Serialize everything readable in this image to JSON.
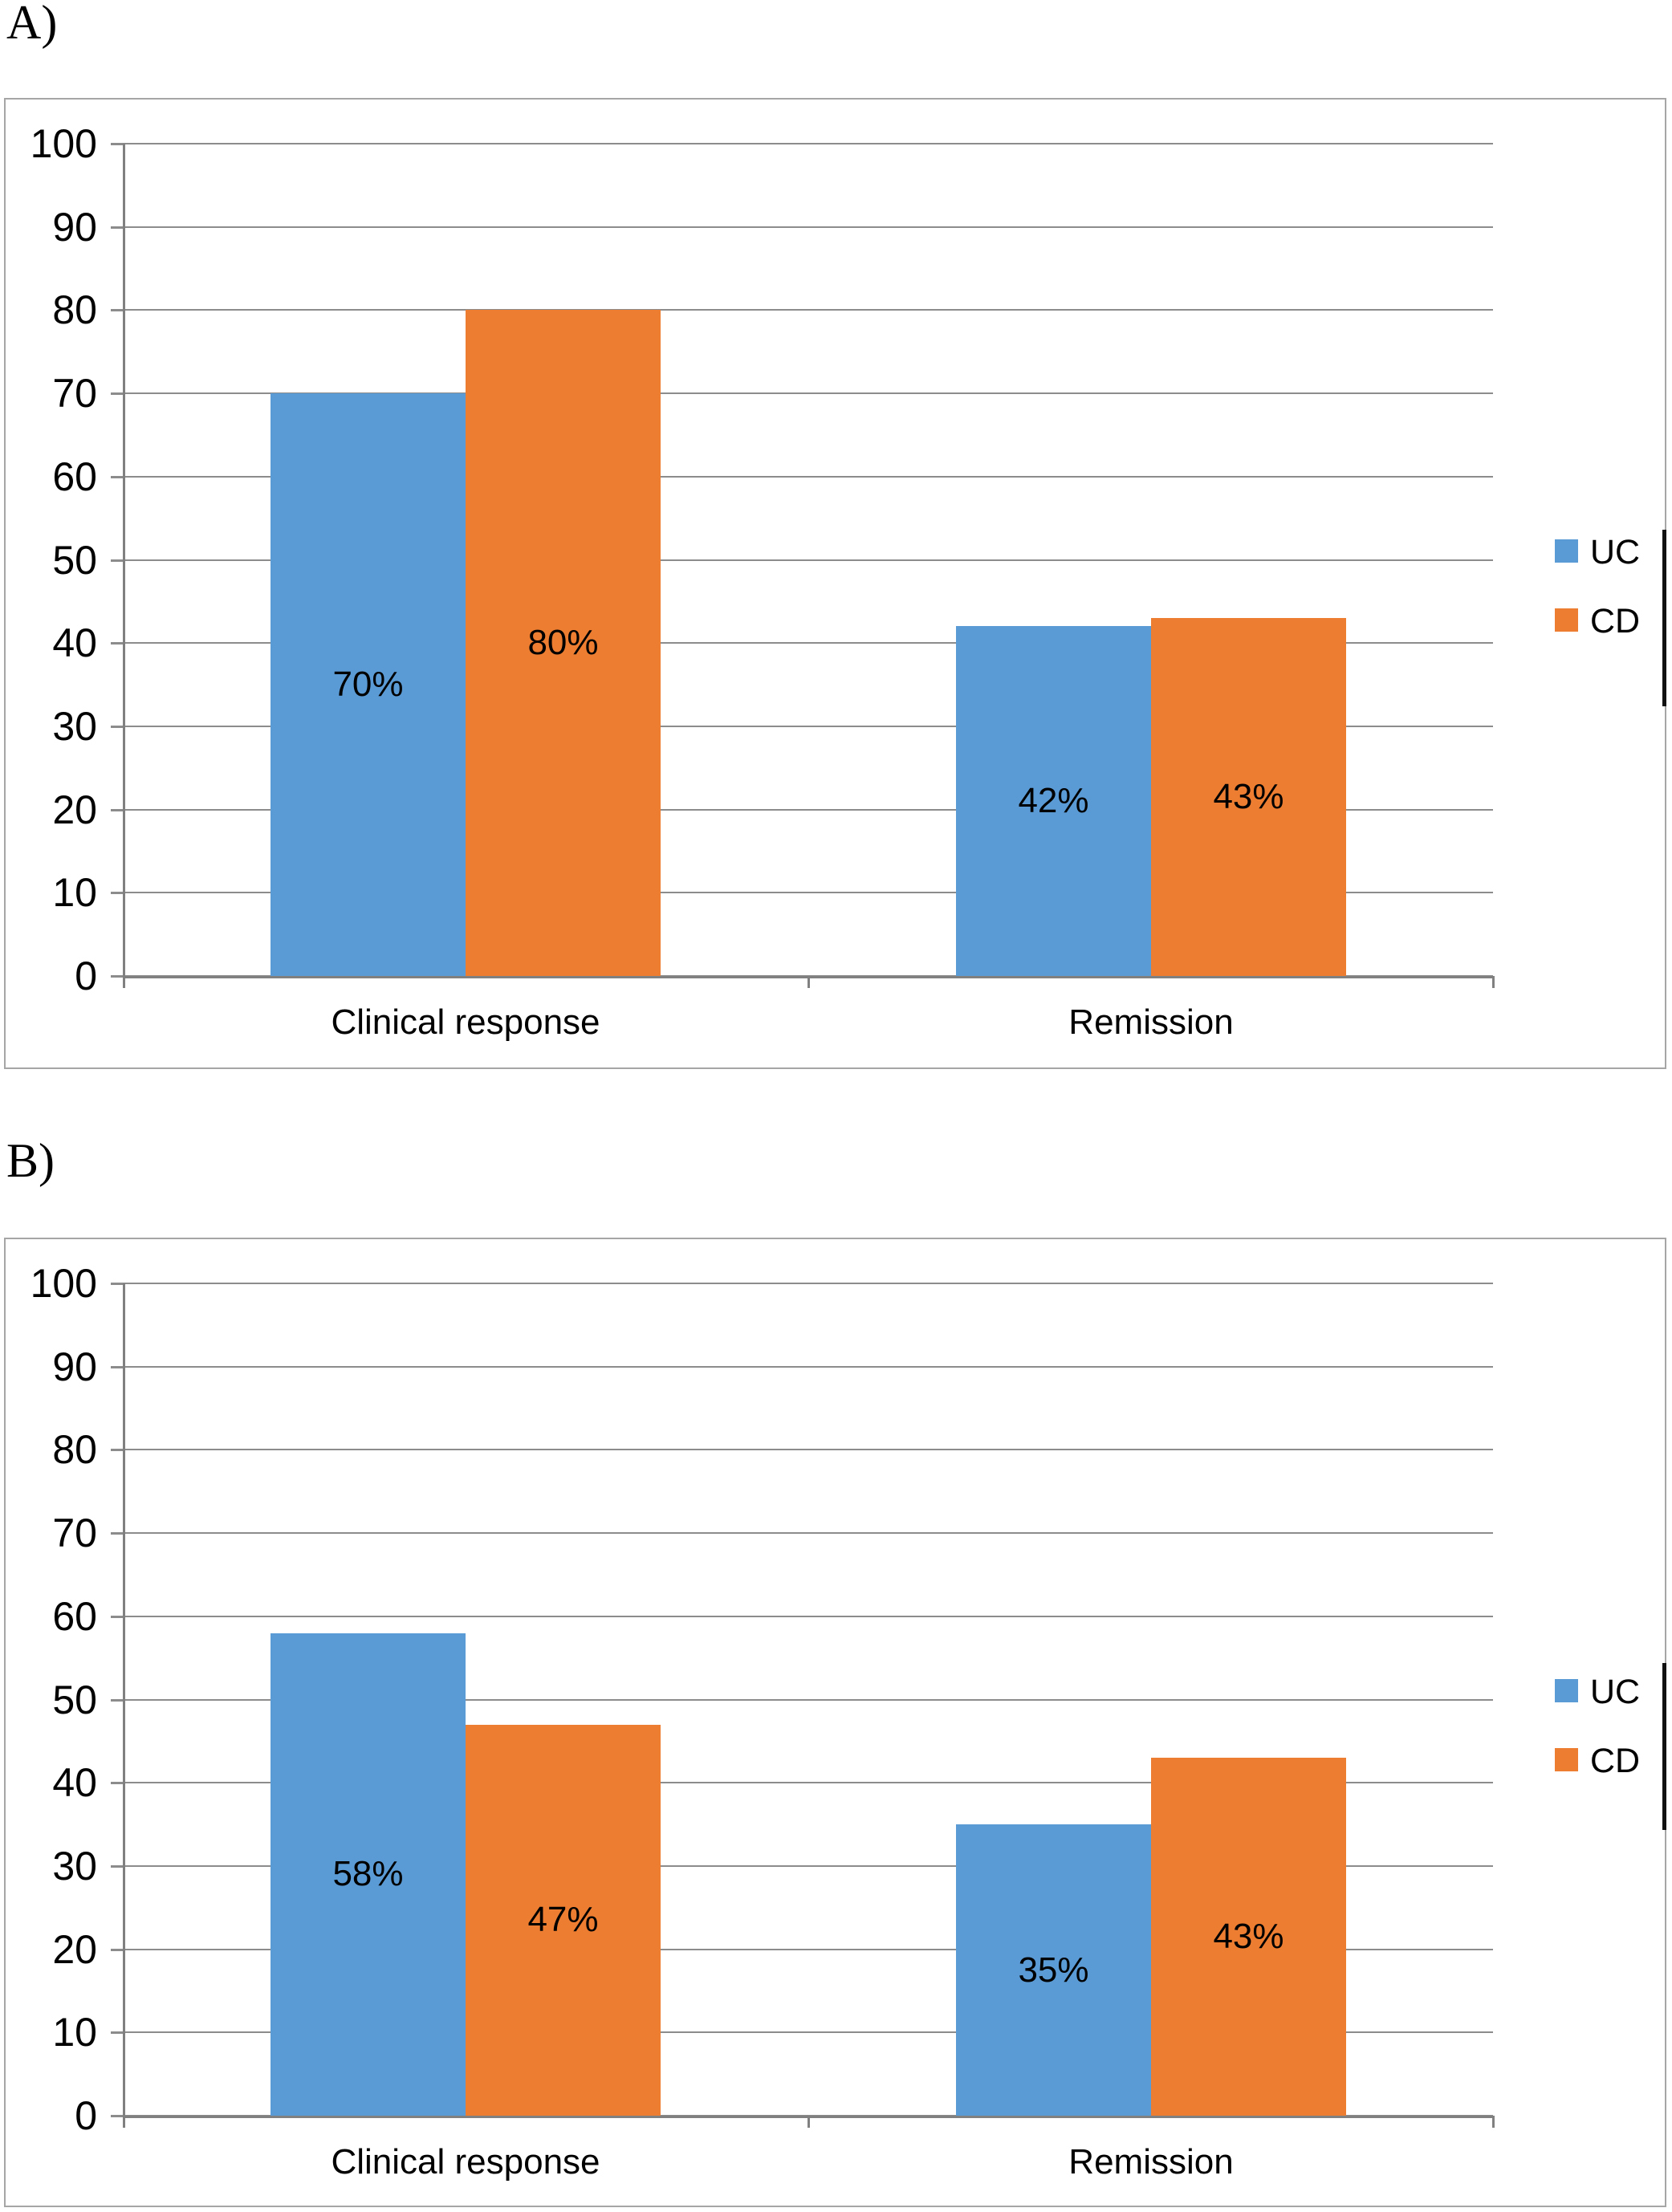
{
  "chart_data": [
    {
      "panel_label": "A)",
      "type": "bar",
      "title": "",
      "xlabel": "",
      "ylabel": "",
      "categories": [
        "Clinical response",
        "Remission"
      ],
      "series": [
        {
          "name": "UC",
          "color": "#5B9BD5",
          "values": [
            70,
            42
          ],
          "data_labels": [
            "70%",
            "42%"
          ]
        },
        {
          "name": "CD",
          "color": "#ED7D31",
          "values": [
            80,
            43
          ],
          "data_labels": [
            "80%",
            "43%"
          ]
        }
      ],
      "ylim": [
        0,
        100
      ],
      "yticks": [
        100,
        90,
        80,
        70,
        60,
        50,
        40,
        30,
        20,
        10,
        0
      ],
      "grid": true,
      "legend_position": "right",
      "data_label_position": "center"
    },
    {
      "panel_label": "B)",
      "type": "bar",
      "title": "",
      "xlabel": "",
      "ylabel": "",
      "categories": [
        "Clinical response",
        "Remission"
      ],
      "series": [
        {
          "name": "UC",
          "color": "#5B9BD5",
          "values": [
            58,
            35
          ],
          "data_labels": [
            "58%",
            "35%"
          ]
        },
        {
          "name": "CD",
          "color": "#ED7D31",
          "values": [
            47,
            43
          ],
          "data_labels": [
            "47%",
            "43%"
          ]
        }
      ],
      "ylim": [
        0,
        100
      ],
      "yticks": [
        100,
        90,
        80,
        70,
        60,
        50,
        40,
        30,
        20,
        10,
        0
      ],
      "grid": true,
      "legend_position": "right",
      "data_label_position": "center"
    }
  ],
  "colors": {
    "uc": "#5B9BD5",
    "cd": "#ED7D31",
    "gridline": "#8C8C8C",
    "axis": "#808080",
    "border": "#A6A6A6"
  }
}
